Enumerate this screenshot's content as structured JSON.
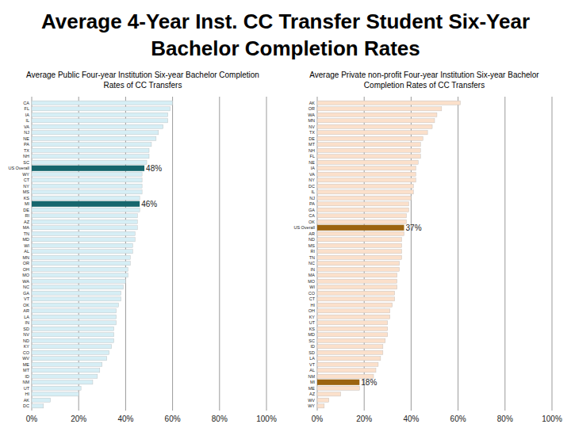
{
  "title": "Average 4-Year Inst. CC Transfer Student Six-Year Bachelor Completion Rates",
  "chart_data": [
    {
      "type": "bar",
      "orientation": "horizontal",
      "title": "Average Public Four-year Institution Six-year Bachelor Completion Rates of CC Transfers",
      "categories": [
        "CA",
        "FL",
        "IA",
        "IL",
        "VA",
        "NJ",
        "NE",
        "PA",
        "TX",
        "NH",
        "SC",
        "US Overall",
        "WY",
        "CT",
        "NY",
        "MS",
        "KS",
        "MI",
        "DE",
        "RI",
        "AZ",
        "MA",
        "TN",
        "MD",
        "WI",
        "AL",
        "MN",
        "OR",
        "OH",
        "MO",
        "WA",
        "NC",
        "GA",
        "VT",
        "OK",
        "AR",
        "LA",
        "IN",
        "SD",
        "NV",
        "ND",
        "KY",
        "CO",
        "WV",
        "ME",
        "MT",
        "ID",
        "NM",
        "UT",
        "HI",
        "AK",
        "DC"
      ],
      "values": [
        60,
        59,
        58,
        58,
        56,
        54,
        53,
        51,
        50,
        50,
        49,
        48,
        47,
        47,
        47,
        47,
        46,
        46,
        46,
        45,
        45,
        45,
        44,
        44,
        43,
        43,
        42,
        42,
        41,
        41,
        40,
        39,
        38,
        38,
        37,
        36,
        36,
        36,
        35,
        35,
        35,
        34,
        33,
        32,
        30,
        29,
        28,
        26,
        21,
        20,
        8,
        5
      ],
      "value_labels": [
        null,
        null,
        null,
        null,
        null,
        null,
        null,
        null,
        null,
        null,
        null,
        "48%",
        null,
        null,
        null,
        null,
        null,
        "46%",
        null,
        null,
        null,
        null,
        null,
        null,
        null,
        null,
        null,
        null,
        null,
        null,
        null,
        null,
        null,
        null,
        null,
        null,
        null,
        null,
        null,
        null,
        null,
        null,
        null,
        null,
        null,
        null,
        null,
        null,
        null,
        null,
        null,
        null
      ],
      "colors": [
        "#d6eef5",
        "#d6eef5",
        "#d6eef5",
        "#d6eef5",
        "#d6eef5",
        "#d6eef5",
        "#d6eef5",
        "#d6eef5",
        "#d6eef5",
        "#d6eef5",
        "#d6eef5",
        "#16666d",
        "#d6eef5",
        "#d6eef5",
        "#d6eef5",
        "#d6eef5",
        "#d6eef5",
        "#16666d",
        "#d6eef5",
        "#d6eef5",
        "#d6eef5",
        "#d6eef5",
        "#d6eef5",
        "#d6eef5",
        "#d6eef5",
        "#d6eef5",
        "#d6eef5",
        "#d6eef5",
        "#d6eef5",
        "#d6eef5",
        "#d6eef5",
        "#d6eef5",
        "#d6eef5",
        "#d6eef5",
        "#d6eef5",
        "#d6eef5",
        "#d6eef5",
        "#d6eef5",
        "#d6eef5",
        "#d6eef5",
        "#d6eef5",
        "#d6eef5",
        "#d6eef5",
        "#d6eef5",
        "#d6eef5",
        "#d6eef5",
        "#d6eef5",
        "#d6eef5",
        "#d6eef5",
        "#d6eef5",
        "#d6eef5",
        "#d6eef5"
      ],
      "xlim": [
        0,
        100
      ],
      "xticks": [
        {
          "value": 0,
          "label": "0%"
        },
        {
          "value": 20,
          "label": "20%"
        },
        {
          "value": 40,
          "label": "40%"
        },
        {
          "value": 60,
          "label": "60%"
        },
        {
          "value": 80,
          "label": "80%"
        },
        {
          "value": 100,
          "label": "100%"
        }
      ],
      "grid": true
    },
    {
      "type": "bar",
      "orientation": "horizontal",
      "title": "Average Private non-profit Four-year Institution Six-year Bachelor Completion Rates of CC Transfers",
      "categories": [
        "AK",
        "OR",
        "WA",
        "MN",
        "NV",
        "TX",
        "DE",
        "MT",
        "NH",
        "FL",
        "NE",
        "IA",
        "VA",
        "NY",
        "DC",
        "IL",
        "NJ",
        "PA",
        "GA",
        "CA",
        "OK",
        "US Overall",
        "AR",
        "ND",
        "MS",
        "RI",
        "TN",
        "NC",
        "IN",
        "MA",
        "MO",
        "WI",
        "CO",
        "CT",
        "HI",
        "OH",
        "KY",
        "UT",
        "KS",
        "MD",
        "SC",
        "ID",
        "SD",
        "LA",
        "VT",
        "AL",
        "NM",
        "MI",
        "ME",
        "AZ",
        "WV",
        "WY"
      ],
      "values": [
        61,
        53,
        51,
        50,
        49,
        47,
        45,
        44,
        44,
        44,
        43,
        42,
        42,
        42,
        41,
        41,
        40,
        39,
        39,
        38,
        38,
        37,
        37,
        36,
        36,
        36,
        36,
        35,
        35,
        34,
        34,
        34,
        33,
        33,
        32,
        31,
        31,
        30,
        30,
        30,
        29,
        28,
        28,
        27,
        26,
        25,
        24,
        18,
        18,
        10,
        5,
        3
      ],
      "value_labels": [
        null,
        null,
        null,
        null,
        null,
        null,
        null,
        null,
        null,
        null,
        null,
        null,
        null,
        null,
        null,
        null,
        null,
        null,
        null,
        null,
        null,
        "37%",
        null,
        null,
        null,
        null,
        null,
        null,
        null,
        null,
        null,
        null,
        null,
        null,
        null,
        null,
        null,
        null,
        null,
        null,
        null,
        null,
        null,
        null,
        null,
        null,
        null,
        "18%",
        null,
        null,
        null,
        null
      ],
      "colors": [
        "#fbe0cb",
        "#fbe0cb",
        "#fbe0cb",
        "#fbe0cb",
        "#fbe0cb",
        "#fbe0cb",
        "#fbe0cb",
        "#fbe0cb",
        "#fbe0cb",
        "#fbe0cb",
        "#fbe0cb",
        "#fbe0cb",
        "#fbe0cb",
        "#fbe0cb",
        "#fbe0cb",
        "#fbe0cb",
        "#fbe0cb",
        "#fbe0cb",
        "#fbe0cb",
        "#fbe0cb",
        "#fbe0cb",
        "#9c6410",
        "#fbe0cb",
        "#fbe0cb",
        "#fbe0cb",
        "#fbe0cb",
        "#fbe0cb",
        "#fbe0cb",
        "#fbe0cb",
        "#fbe0cb",
        "#fbe0cb",
        "#fbe0cb",
        "#fbe0cb",
        "#fbe0cb",
        "#fbe0cb",
        "#fbe0cb",
        "#fbe0cb",
        "#fbe0cb",
        "#fbe0cb",
        "#fbe0cb",
        "#fbe0cb",
        "#fbe0cb",
        "#fbe0cb",
        "#fbe0cb",
        "#fbe0cb",
        "#fbe0cb",
        "#fbe0cb",
        "#9c6410",
        "#fbe0cb",
        "#fbe0cb",
        "#fbe0cb",
        "#fbe0cb"
      ],
      "xlim": [
        0,
        100
      ],
      "xticks": [
        {
          "value": 0,
          "label": "0%"
        },
        {
          "value": 20,
          "label": "20%"
        },
        {
          "value": 40,
          "label": "40%"
        },
        {
          "value": 60,
          "label": "60%"
        },
        {
          "value": 80,
          "label": "80%"
        },
        {
          "value": 100,
          "label": "100%"
        }
      ],
      "grid": true
    }
  ]
}
